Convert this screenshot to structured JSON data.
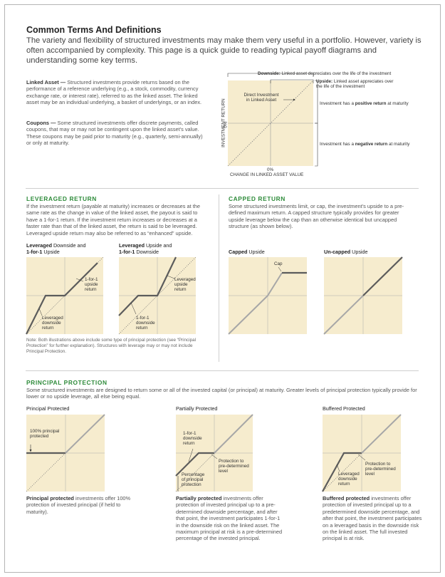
{
  "header": {
    "title": "Common Terms And Definitions",
    "intro": "The variety and flexibility of structured investments may make them very useful in a portfolio. However, variety is often accompanied by complexity. This page is a quick guide to reading typical payoff diagrams and understanding some key terms."
  },
  "terms": {
    "linked_asset_term": "Linked Asset —",
    "linked_asset_text": "Structured investments provide returns based on the performance of a reference underlying (e.g., a stock, commodity, currency exchange rate, or interest rate), referred to as the linked asset. The linked asset may be an individual underlying, a basket of underlyings, or an index.",
    "coupons_term": "Coupons —",
    "coupons_text": "Some structured investments offer discrete payments, called coupons, that may or may not be contingent upon the linked asset's value. These coupons may be paid prior to maturity (e.g., quarterly, semi-annually) or only at maturity."
  },
  "main_diagram": {
    "downside_bold": "Downside:",
    "downside_text": "Linked asset depreciates over the life of the investment",
    "upside_bold": "Upside:",
    "upside_text_1": "Linked asset appreciates over",
    "upside_text_2": "the life of the investment",
    "direct_investment_1": "Direct Investment",
    "direct_investment_2": "in Linked Asset",
    "positive_pre": "Investment has a",
    "positive_bold": "positive return",
    "positive_post": "at maturity",
    "negative_pre": "Investment has a",
    "negative_bold": "negative return",
    "negative_post": "at maturity",
    "y_axis": "INVESTMENT RETURN",
    "y_zero": "0%",
    "x_zero": "0%",
    "x_axis": "CHANGE IN LINKED ASSET VALUE"
  },
  "leveraged": {
    "title": "LEVERAGED RETURN",
    "text": "If the investment return (payable at maturity) increases or decreases at the same rate as the change in value of the linked asset, the payout is said to have a 1-for-1 return. If the investment return increases or decreases at a faster rate than that of the linked asset, the return is said to be leveraged. Leveraged upside return may also be referred to as “enhanced” upside.",
    "chart1": {
      "label_bold_1": "Leveraged",
      "label_text_1": "Downside and",
      "label_bold_2": "1-for-1",
      "label_text_2": "Upside",
      "ann_up_1": "1-for-1",
      "ann_up_2": "upside",
      "ann_up_3": "return",
      "ann_down_1": "Leveraged",
      "ann_down_2": "downside",
      "ann_down_3": "return"
    },
    "chart2": {
      "label_bold_1": "Leveraged",
      "label_text_1": "Upside and",
      "label_bold_2": "1-for-1",
      "label_text_2": "Downside",
      "ann_up_1": "Leveraged",
      "ann_up_2": "upside",
      "ann_up_3": "return",
      "ann_down_1": "1-for-1",
      "ann_down_2": "downside",
      "ann_down_3": "return"
    },
    "note": "Note: Both illustrations above include some type of principal protection (see “Principal Protection” for further explanation). Structures with leverage may or may not include Principal Protection."
  },
  "capped": {
    "title": "CAPPED RETURN",
    "text": "Some structured investments limit, or cap, the investment's upside to a pre-defined maximum return. A capped structure typically provides for greater upside leverage below the cap than an otherwise identical but uncapped structure (as shown below).",
    "chart1": {
      "label_bold": "Capped",
      "label_text": "Upside",
      "cap": "Cap"
    },
    "chart2": {
      "label_bold": "Un-capped",
      "label_text": "Upside"
    }
  },
  "protection": {
    "title": "PRINCIPAL PROTECTION",
    "text": "Some structured investments are designed to return some or all of the invested capital (or principal) at maturity. Greater levels of principal protection typically provide for lower or no upside leverage, all else being equal.",
    "chart1": {
      "label": "Principal Protected",
      "ann_1": "100% principal",
      "ann_2": "protected",
      "desc_bold": "Principal protected",
      "desc_text": "investments offer 100% protection of invested principal (if held to maturity)."
    },
    "chart2": {
      "label": "Partially Protected",
      "ann_a1": "1-for-1",
      "ann_a2": "downside",
      "ann_a3": "return",
      "ann_b1": "Protection to",
      "ann_b2": "pre-determined",
      "ann_b3": "level",
      "ann_c1": "Percentage",
      "ann_c2": "of principal",
      "ann_c3": "protection",
      "desc_bold": "Partially protected",
      "desc_text": "investments offer protection of invested principal up to a pre-determined downside percentage, and after that point, the investment participates 1-for-1 in the downside risk on the linked asset. The maximum principal at risk is a pre-determined percentage of the invested principal."
    },
    "chart3": {
      "label": "Buffered Protected",
      "ann_a1": "Protection to",
      "ann_a2": "pre-determined",
      "ann_a3": "level",
      "ann_b1": "Leveraged",
      "ann_b2": "downside",
      "ann_b3": "return",
      "desc_bold": "Buffered protected",
      "desc_text": "investments offer protection of invested principal up to a predetermined downside percentage, and after that point, the investment participates on a leveraged basis in the downside risk on the linked asset. The full invested principal is at risk."
    }
  },
  "colors": {
    "chart_bg": "#f6ecce",
    "payoff_line": "#5c5c5c",
    "direct_line": "#a7a7a7",
    "section_green": "#2e8b3a"
  }
}
